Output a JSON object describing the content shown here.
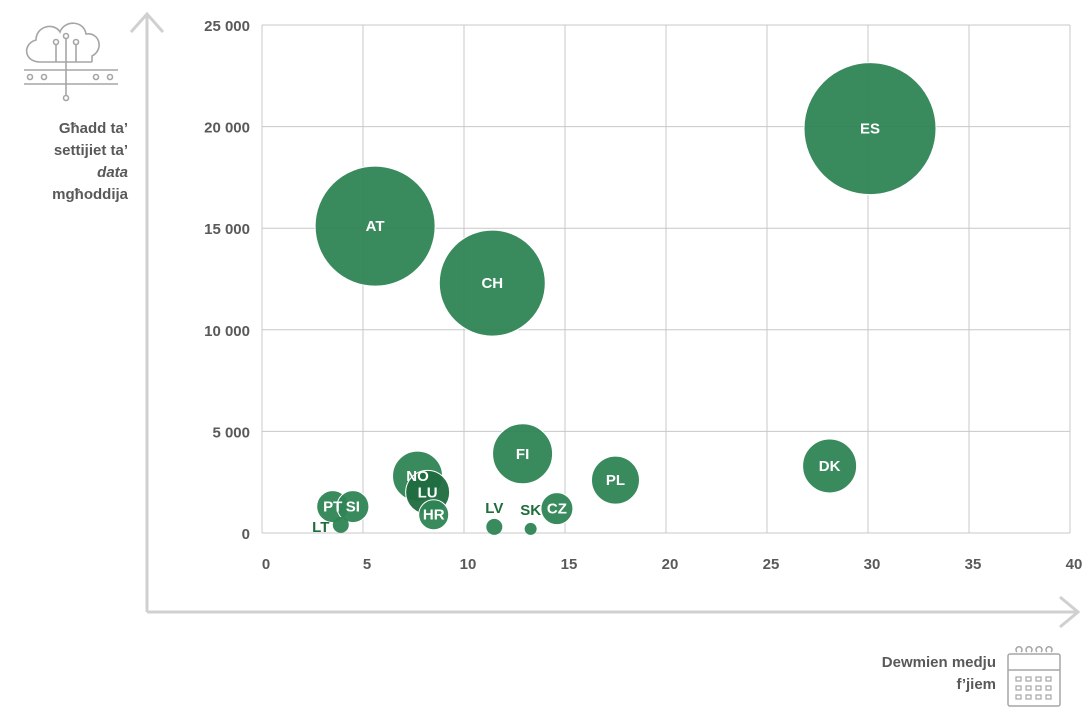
{
  "chart_data": {
    "type": "bubble",
    "x_ticks": [
      "0",
      "5",
      "10",
      "15",
      "20",
      "25",
      "30",
      "35",
      "40"
    ],
    "y_ticks": [
      "0",
      "5 000",
      "10 000",
      "15 000",
      "20 000",
      "25 000"
    ],
    "xlim": [
      0,
      40
    ],
    "ylim": [
      0,
      25000
    ],
    "grid": "vertical and horizontal",
    "ylabel_lines": [
      "Għadd ta’",
      "settijiet ta’",
      "data",
      "mgħoddija"
    ],
    "xlabel_lines": [
      "Dewmien medju",
      "f’jiem"
    ],
    "points": [
      {
        "label": "ES",
        "x": 30.1,
        "y": 19900,
        "size": 66
      },
      {
        "label": "AT",
        "x": 5.6,
        "y": 15100,
        "size": 60
      },
      {
        "label": "CH",
        "x": 11.4,
        "y": 12300,
        "size": 53
      },
      {
        "label": "FI",
        "x": 12.9,
        "y": 3900,
        "size": 30
      },
      {
        "label": "DK",
        "x": 28.1,
        "y": 3300,
        "size": 27
      },
      {
        "label": "NO",
        "x": 7.7,
        "y": 2800,
        "size": 25
      },
      {
        "label": "PL",
        "x": 17.5,
        "y": 2600,
        "size": 24
      },
      {
        "label": "LU",
        "x": 8.2,
        "y": 2000,
        "size": 22
      },
      {
        "label": "PT",
        "x": 3.5,
        "y": 1300,
        "size": 16
      },
      {
        "label": "SI",
        "x": 4.5,
        "y": 1300,
        "size": 16
      },
      {
        "label": "CZ",
        "x": 14.6,
        "y": 1200,
        "size": 16
      },
      {
        "label": "HR",
        "x": 8.5,
        "y": 900,
        "size": 15
      },
      {
        "label": "LT",
        "x": 3.9,
        "y": 400,
        "size": 8
      },
      {
        "label": "LV",
        "x": 11.5,
        "y": 300,
        "size": 8
      },
      {
        "label": "SK",
        "x": 13.3,
        "y": 200,
        "size": 6
      }
    ]
  },
  "colors": {
    "bubble": "#2e8555",
    "bubble_dark": "#1f6b3f",
    "label_outside": "#1e6e3c",
    "label_inside": "#ffffff",
    "grid": "#c8c8c8",
    "axis_arrow": "#d0d0d0",
    "text": "#595959"
  },
  "icons": {
    "y_axis_icon": "cloud-circuit-icon",
    "x_axis_icon": "calendar-icon"
  }
}
